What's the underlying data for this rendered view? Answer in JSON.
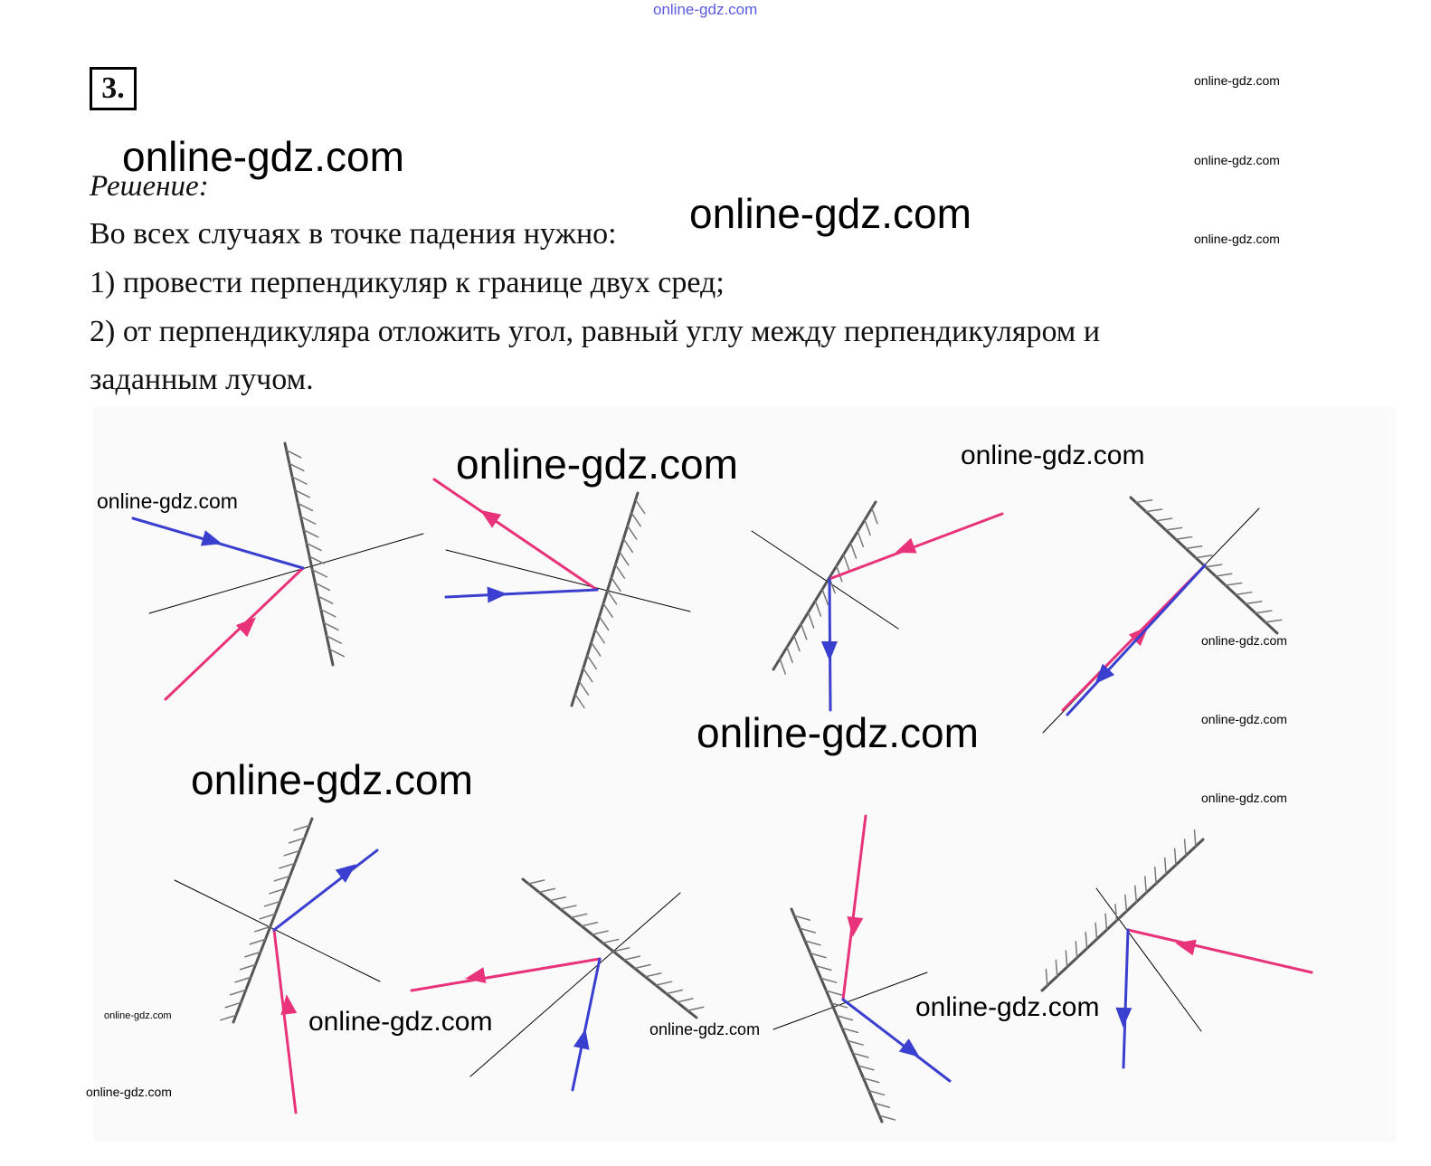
{
  "header": {
    "watermark_top": "online-gdz.com"
  },
  "task": {
    "number": "3.",
    "solution_label": "Решение:",
    "lines": [
      "Во всех случаях в точке падения нужно:",
      "1) провести перпендикуляр к границе двух сред;",
      "2) от перпендикуляра отложить угол, равный углу между перпендикуляром и",
      "заданным лучом."
    ]
  },
  "watermarks": [
    "online-gdz.com",
    "online-gdz.com",
    "online-gdz.com",
    "online-gdz.com",
    "online-gdz.com",
    "online-gdz.com",
    "online-gdz.com",
    "online-gdz.com",
    "online-gdz.com",
    "online-gdz.com",
    "online-gdz.com",
    "online-gdz.com",
    "online-gdz.com",
    "online-gdz.com",
    "online-gdz.com",
    "online-gdz.com",
    "online-gdz.com",
    "online-gdz.com",
    "online-gdz.com"
  ],
  "colors": {
    "incident_ray": "#e8337a",
    "reflected_ray": "#3a3fcf",
    "mirror": "#555555",
    "normal": "#000000",
    "watermark_top": "#5a5ae0"
  }
}
